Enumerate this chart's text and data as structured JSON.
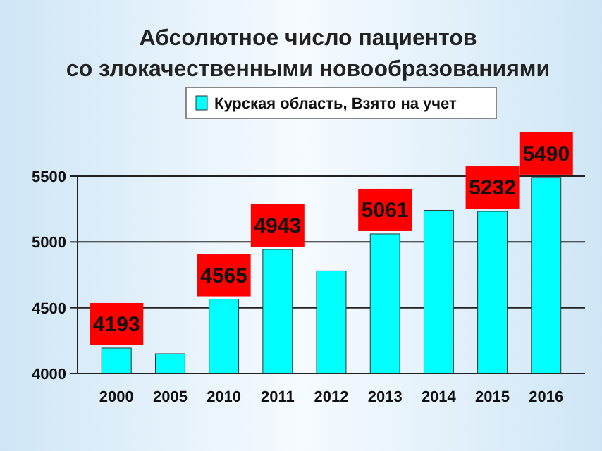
{
  "chart_data": {
    "type": "bar",
    "title": "Абсолютное число пациентов со злокачественными новообразованиями",
    "categories": [
      "2000",
      "2005",
      "2010",
      "2011",
      "2012",
      "2013",
      "2014",
      "2015",
      "2016"
    ],
    "series": [
      {
        "name": "Курская область, Взято на учет",
        "color": "#00ffff",
        "values": [
          4193,
          4150,
          4565,
          4943,
          4780,
          5061,
          5240,
          5232,
          5490
        ],
        "value_labels": [
          "4193",
          null,
          "4565",
          "4943",
          null,
          "5061",
          null,
          "5232",
          "5490"
        ]
      }
    ],
    "ylim": [
      4000,
      5500
    ],
    "yticks": [
      4000,
      4500,
      5000,
      5500
    ],
    "grid": "y",
    "legend": "top"
  }
}
